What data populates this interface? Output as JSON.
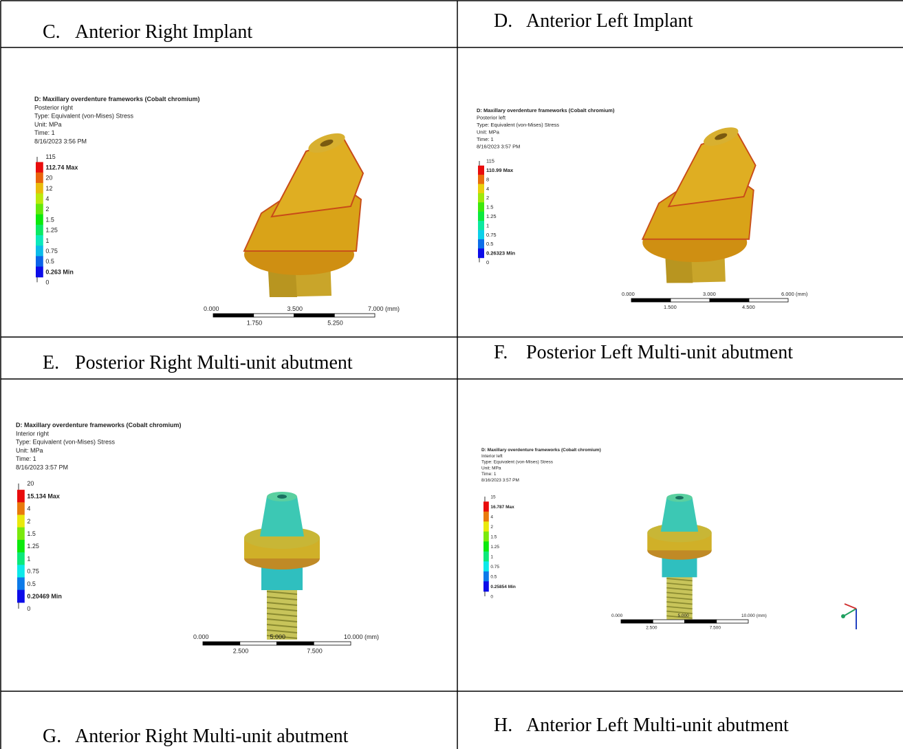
{
  "captions": [
    {
      "letter": "C.",
      "text": "Anterior Right Implant"
    },
    {
      "letter": "D.",
      "text": "Anterior Left Implant"
    },
    {
      "letter": "E.",
      "text": "Posterior Right Multi-unit abutment"
    },
    {
      "letter": "F.",
      "text": "Posterior Left Multi-unit abutment"
    },
    {
      "letter": "G.",
      "text": "Anterior Right Multi-unit abutment"
    },
    {
      "letter": "H.",
      "text": "Anterior Left Multi-unit abutment"
    }
  ],
  "panels": [
    {
      "header": [
        "D: Maxillary overdenture frameworks (Cobalt chromium)",
        "Posterior right",
        "Type: Equivalent (von-Mises) Stress",
        "Unit: MPa",
        "Time: 1",
        "8/16/2023 3:56 PM"
      ],
      "legend": [
        "115",
        "112.74 Max",
        "20",
        "12",
        "4",
        "2",
        "1.5",
        "1.25",
        "1",
        "0.75",
        "0.5",
        "0.263 Min",
        "0"
      ],
      "scale_top": [
        "0.000",
        "3.500",
        "7.000 (mm)"
      ],
      "scale_bottom": [
        "1.750",
        "5.250"
      ]
    },
    {
      "header": [
        "D: Maxillary overdenture frameworks (Cobalt chromium)",
        "Posterior left",
        "Type: Equivalent (von-Mises) Stress",
        "Unit: MPa",
        "Time: 1",
        "8/16/2023 3:57 PM"
      ],
      "legend": [
        "115",
        "110.99 Max",
        "8",
        "4",
        "2",
        "1.5",
        "1.25",
        "1",
        "0.75",
        "0.5",
        "0.26323 Min",
        "0"
      ],
      "scale_top": [
        "0.000",
        "3.000",
        "6.000 (mm)"
      ],
      "scale_bottom": [
        "1.500",
        "4.500"
      ]
    },
    {
      "header": [
        "D: Maxillary overdenture frameworks (Cobalt chromium)",
        "Interior right",
        "Type: Equivalent (von-Mises) Stress",
        "Unit: MPa",
        "Time: 1",
        "8/16/2023 3:57 PM"
      ],
      "legend": [
        "20",
        "15.134 Max",
        "4",
        "2",
        "1.5",
        "1.25",
        "1",
        "0.75",
        "0.5",
        "0.20469 Min",
        "0"
      ],
      "scale_top": [
        "0.000",
        "5.000",
        "10.000 (mm)"
      ],
      "scale_bottom": [
        "2.500",
        "7.500"
      ]
    },
    {
      "header": [
        "D: Maxillary overdenture frameworks (Cobalt chromium)",
        "Interior left",
        "Type: Equivalent (von-Mises) Stress",
        "Unit: MPa",
        "Time: 1",
        "8/16/2023 3:57 PM"
      ],
      "legend": [
        "15",
        "16.787 Max",
        "4",
        "2",
        "1.5",
        "1.25",
        "1",
        "0.75",
        "0.5",
        "0.25854 Min",
        "0"
      ],
      "scale_top": [
        "0.000",
        "5.000",
        "10.000 (mm)"
      ],
      "scale_bottom": [
        "2.500",
        "7.500"
      ]
    }
  ]
}
